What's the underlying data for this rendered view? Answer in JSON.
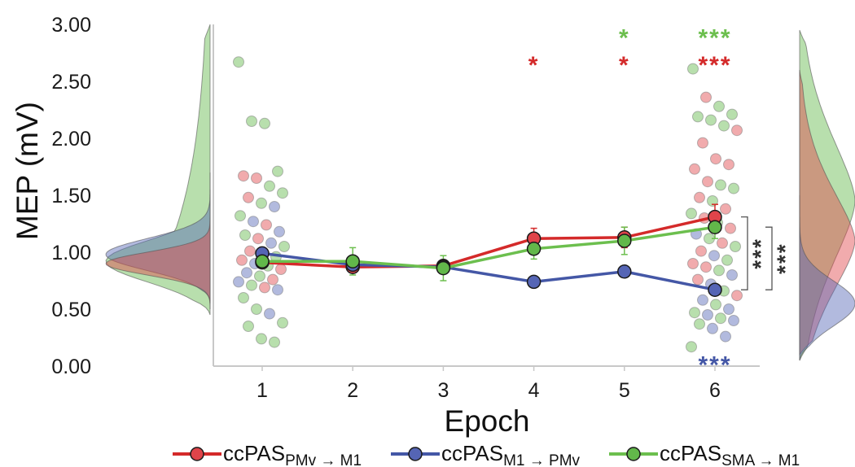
{
  "chart_data": {
    "type": "line",
    "title": "",
    "xlabel": "Epoch",
    "ylabel": "MEP (mV)",
    "x": [
      1,
      2,
      3,
      4,
      5,
      6
    ],
    "xlim": [
      0.5,
      6.5
    ],
    "ylim": [
      0,
      3.0
    ],
    "yticks": [
      "0.00",
      "0.50",
      "1.00",
      "1.50",
      "2.00",
      "2.50",
      "3.00"
    ],
    "xticks": [
      "1",
      "2",
      "3",
      "4",
      "5",
      "6"
    ],
    "grid": false,
    "legend_position": "bottom",
    "legend": [
      {
        "prefix": "ccPAS",
        "sub_from": "PMv",
        "sub_to": "M1",
        "series": "PMv_M1"
      },
      {
        "prefix": "ccPAS",
        "sub_from": "M1",
        "sub_to": "PMv",
        "series": "M1_PMv"
      },
      {
        "prefix": "ccPAS",
        "sub_from": "SMA",
        "sub_to": "M1",
        "series": "SMA_M1"
      }
    ],
    "series": [
      {
        "id": "PMv_M1",
        "color": "#d42a2a",
        "fill": "#e0444a",
        "values": [
          0.91,
          0.87,
          0.88,
          1.12,
          1.13,
          1.31
        ],
        "errors": [
          0.03,
          0.03,
          0.03,
          0.09,
          0.09,
          0.11
        ]
      },
      {
        "id": "M1_PMv",
        "color": "#4457a6",
        "fill": "#5565b5",
        "values": [
          0.99,
          0.89,
          0.87,
          0.74,
          0.83,
          0.67
        ],
        "errors": [
          0.04,
          0.03,
          0.03,
          0.02,
          0.03,
          0.05
        ]
      },
      {
        "id": "SMA_M1",
        "color": "#6cbf4e",
        "fill": "#62b84a",
        "values": [
          0.92,
          0.92,
          0.86,
          1.03,
          1.1,
          1.22
        ],
        "errors": [
          0.05,
          0.12,
          0.11,
          0.09,
          0.12,
          0.1
        ]
      }
    ],
    "significance": [
      {
        "x": 4,
        "y": 2.67,
        "text": "*",
        "color": "#d42a2a"
      },
      {
        "x": 5,
        "y": 2.67,
        "text": "*",
        "color": "#d42a2a"
      },
      {
        "x": 5,
        "y": 2.91,
        "text": "*",
        "color": "#6cbf4e"
      },
      {
        "x": 6,
        "y": 2.67,
        "text": "***",
        "color": "#d42a2a"
      },
      {
        "x": 6,
        "y": 2.91,
        "text": "***",
        "color": "#6cbf4e"
      },
      {
        "x": 6,
        "y": 0.04,
        "text": "***",
        "color": "#4457a6"
      }
    ],
    "brackets": [
      {
        "from": 0.67,
        "to": 1.31,
        "text": "***",
        "color": "#333333"
      },
      {
        "from": 0.67,
        "to": 1.22,
        "text": "***",
        "color": "#333333"
      }
    ],
    "scatter": [
      {
        "x": 1,
        "y": 2.67,
        "series": "SMA_M1"
      },
      {
        "x": 1,
        "y": 2.15,
        "series": "SMA_M1"
      },
      {
        "x": 1,
        "y": 2.13,
        "series": "SMA_M1"
      },
      {
        "x": 1,
        "y": 1.71,
        "series": "SMA_M1"
      },
      {
        "x": 1,
        "y": 1.67,
        "series": "PMv_M1"
      },
      {
        "x": 1,
        "y": 1.65,
        "series": "PMv_M1"
      },
      {
        "x": 1,
        "y": 1.58,
        "series": "SMA_M1"
      },
      {
        "x": 1,
        "y": 1.52,
        "series": "SMA_M1"
      },
      {
        "x": 1,
        "y": 1.48,
        "series": "PMv_M1"
      },
      {
        "x": 1,
        "y": 1.43,
        "series": "SMA_M1"
      },
      {
        "x": 1,
        "y": 1.4,
        "series": "M1_PMv"
      },
      {
        "x": 1,
        "y": 1.32,
        "series": "SMA_M1"
      },
      {
        "x": 1,
        "y": 1.27,
        "series": "M1_PMv"
      },
      {
        "x": 1,
        "y": 1.24,
        "series": "PMv_M1"
      },
      {
        "x": 1,
        "y": 1.18,
        "series": "M1_PMv"
      },
      {
        "x": 1,
        "y": 1.15,
        "series": "SMA_M1"
      },
      {
        "x": 1,
        "y": 1.12,
        "series": "PMv_M1"
      },
      {
        "x": 1,
        "y": 1.08,
        "series": "M1_PMv"
      },
      {
        "x": 1,
        "y": 1.05,
        "series": "SMA_M1"
      },
      {
        "x": 1,
        "y": 1.01,
        "series": "PMv_M1"
      },
      {
        "x": 1,
        "y": 0.98,
        "series": "M1_PMv"
      },
      {
        "x": 1,
        "y": 0.96,
        "series": "SMA_M1"
      },
      {
        "x": 1,
        "y": 0.93,
        "series": "PMv_M1"
      },
      {
        "x": 1,
        "y": 0.9,
        "series": "M1_PMv"
      },
      {
        "x": 1,
        "y": 0.88,
        "series": "SMA_M1"
      },
      {
        "x": 1,
        "y": 0.85,
        "series": "PMv_M1"
      },
      {
        "x": 1,
        "y": 0.82,
        "series": "M1_PMv"
      },
      {
        "x": 1,
        "y": 0.79,
        "series": "SMA_M1"
      },
      {
        "x": 1,
        "y": 0.76,
        "series": "PMv_M1"
      },
      {
        "x": 1,
        "y": 0.74,
        "series": "M1_PMv"
      },
      {
        "x": 1,
        "y": 0.71,
        "series": "SMA_M1"
      },
      {
        "x": 1,
        "y": 0.69,
        "series": "PMv_M1"
      },
      {
        "x": 1,
        "y": 0.67,
        "series": "M1_PMv"
      },
      {
        "x": 1,
        "y": 0.6,
        "series": "SMA_M1"
      },
      {
        "x": 1,
        "y": 0.5,
        "series": "SMA_M1"
      },
      {
        "x": 1,
        "y": 0.46,
        "series": "M1_PMv"
      },
      {
        "x": 1,
        "y": 0.38,
        "series": "SMA_M1"
      },
      {
        "x": 1,
        "y": 0.35,
        "series": "SMA_M1"
      },
      {
        "x": 1,
        "y": 0.24,
        "series": "SMA_M1"
      },
      {
        "x": 1,
        "y": 0.21,
        "series": "SMA_M1"
      },
      {
        "x": 6,
        "y": 2.61,
        "series": "SMA_M1"
      },
      {
        "x": 6,
        "y": 2.36,
        "series": "PMv_M1"
      },
      {
        "x": 6,
        "y": 2.28,
        "series": "SMA_M1"
      },
      {
        "x": 6,
        "y": 2.21,
        "series": "SMA_M1"
      },
      {
        "x": 6,
        "y": 2.19,
        "series": "SMA_M1"
      },
      {
        "x": 6,
        "y": 2.16,
        "series": "SMA_M1"
      },
      {
        "x": 6,
        "y": 2.11,
        "series": "SMA_M1"
      },
      {
        "x": 6,
        "y": 2.07,
        "series": "PMv_M1"
      },
      {
        "x": 6,
        "y": 1.96,
        "series": "PMv_M1"
      },
      {
        "x": 6,
        "y": 1.82,
        "series": "PMv_M1"
      },
      {
        "x": 6,
        "y": 1.77,
        "series": "PMv_M1"
      },
      {
        "x": 6,
        "y": 1.73,
        "series": "PMv_M1"
      },
      {
        "x": 6,
        "y": 1.62,
        "series": "PMv_M1"
      },
      {
        "x": 6,
        "y": 1.59,
        "series": "SMA_M1"
      },
      {
        "x": 6,
        "y": 1.56,
        "series": "SMA_M1"
      },
      {
        "x": 6,
        "y": 1.48,
        "series": "PMv_M1"
      },
      {
        "x": 6,
        "y": 1.45,
        "series": "SMA_M1"
      },
      {
        "x": 6,
        "y": 1.38,
        "series": "PMv_M1"
      },
      {
        "x": 6,
        "y": 1.34,
        "series": "SMA_M1"
      },
      {
        "x": 6,
        "y": 1.3,
        "series": "PMv_M1"
      },
      {
        "x": 6,
        "y": 1.26,
        "series": "SMA_M1"
      },
      {
        "x": 6,
        "y": 1.21,
        "series": "PMv_M1"
      },
      {
        "x": 6,
        "y": 1.16,
        "series": "M1_PMv"
      },
      {
        "x": 6,
        "y": 1.12,
        "series": "SMA_M1"
      },
      {
        "x": 6,
        "y": 1.08,
        "series": "PMv_M1"
      },
      {
        "x": 6,
        "y": 1.05,
        "series": "SMA_M1"
      },
      {
        "x": 6,
        "y": 1.01,
        "series": "PMv_M1"
      },
      {
        "x": 6,
        "y": 0.97,
        "series": "M1_PMv"
      },
      {
        "x": 6,
        "y": 0.93,
        "series": "SMA_M1"
      },
      {
        "x": 6,
        "y": 0.9,
        "series": "PMv_M1"
      },
      {
        "x": 6,
        "y": 0.87,
        "series": "PMv_M1"
      },
      {
        "x": 6,
        "y": 0.84,
        "series": "SMA_M1"
      },
      {
        "x": 6,
        "y": 0.8,
        "series": "M1_PMv"
      },
      {
        "x": 6,
        "y": 0.76,
        "series": "PMv_M1"
      },
      {
        "x": 6,
        "y": 0.72,
        "series": "M1_PMv"
      },
      {
        "x": 6,
        "y": 0.66,
        "series": "SMA_M1"
      },
      {
        "x": 6,
        "y": 0.62,
        "series": "PMv_M1"
      },
      {
        "x": 6,
        "y": 0.58,
        "series": "M1_PMv"
      },
      {
        "x": 6,
        "y": 0.54,
        "series": "SMA_M1"
      },
      {
        "x": 6,
        "y": 0.5,
        "series": "M1_PMv"
      },
      {
        "x": 6,
        "y": 0.47,
        "series": "SMA_M1"
      },
      {
        "x": 6,
        "y": 0.45,
        "series": "M1_PMv"
      },
      {
        "x": 6,
        "y": 0.42,
        "series": "SMA_M1"
      },
      {
        "x": 6,
        "y": 0.4,
        "series": "M1_PMv"
      },
      {
        "x": 6,
        "y": 0.37,
        "series": "SMA_M1"
      },
      {
        "x": 6,
        "y": 0.33,
        "series": "M1_PMv"
      },
      {
        "x": 6,
        "y": 0.26,
        "series": "M1_PMv"
      },
      {
        "x": 6,
        "y": 0.17,
        "series": "SMA_M1"
      }
    ],
    "distributions": {
      "left_epoch1": [
        {
          "series": "SMA_M1",
          "y0": 0.45,
          "y1": 3.0,
          "peak": 0.92,
          "spread": 0.18,
          "shape": "long-upper-tail"
        },
        {
          "series": "M1_PMv",
          "y0": 0.55,
          "y1": 1.55,
          "peak": 0.98,
          "spread": 0.14,
          "shape": "normal"
        },
        {
          "series": "PMv_M1",
          "y0": 0.5,
          "y1": 1.7,
          "peak": 0.9,
          "spread": 0.1,
          "shape": "normal"
        }
      ],
      "right_epoch6": [
        {
          "series": "SMA_M1",
          "y0": 0.05,
          "y1": 2.95,
          "peak": 1.45,
          "spread": 0.55,
          "shape": "broad"
        },
        {
          "series": "PMv_M1",
          "y0": 0.1,
          "y1": 2.6,
          "peak": 1.1,
          "spread": 0.45,
          "shape": "broad"
        },
        {
          "series": "M1_PMv",
          "y0": 0.05,
          "y1": 1.5,
          "peak": 0.55,
          "spread": 0.2,
          "shape": "normal"
        }
      ]
    }
  }
}
